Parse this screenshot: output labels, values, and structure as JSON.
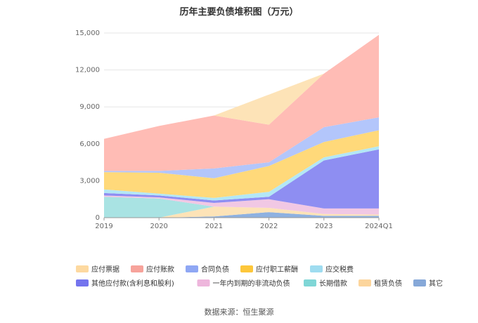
{
  "chart_data": {
    "type": "area",
    "stacked": true,
    "title": "历年主要负债堆积图（万元）",
    "source": "数据来源：恒生聚源",
    "categories": [
      "2019",
      "2020",
      "2021",
      "2022",
      "2023",
      "2024Q1"
    ],
    "ylim": [
      0,
      15000
    ],
    "yticks": [
      0,
      3000,
      6000,
      9000,
      12000,
      15000
    ],
    "ytick_labels": [
      "0",
      "3,000",
      "6,000",
      "9,000",
      "12,000",
      "15,000"
    ],
    "grid": true,
    "legend_position": "bottom",
    "series": [
      {
        "name": "其它",
        "color": "#8eb1e0",
        "values": [
          0,
          0,
          100,
          450,
          150,
          150
        ]
      },
      {
        "name": "租赁负债",
        "color": "#fde3b7",
        "values": [
          0,
          0,
          800,
          350,
          150,
          100
        ]
      },
      {
        "name": "长期借款",
        "color": "#a9e3e3",
        "values": [
          1700,
          1550,
          0,
          0,
          0,
          0
        ]
      },
      {
        "name": "一年内到期的非流动负债",
        "color": "#f1c8e4",
        "values": [
          100,
          100,
          300,
          700,
          450,
          500
        ]
      },
      {
        "name": "其他应付款(含利息和股利)",
        "color": "#8e8ef2",
        "values": [
          200,
          150,
          200,
          200,
          3900,
          4800
        ]
      },
      {
        "name": "应交税费",
        "color": "#b3e7f6",
        "values": [
          300,
          150,
          200,
          400,
          250,
          250
        ]
      },
      {
        "name": "应付职工薪酬",
        "color": "#ffd97a",
        "values": [
          1400,
          1700,
          1600,
          2100,
          1250,
          1300
        ]
      },
      {
        "name": "合同负债",
        "color": "#b3c6fb",
        "values": [
          100,
          150,
          800,
          300,
          1200,
          1050
        ]
      },
      {
        "name": "应付账款",
        "color": "#ffbcb5",
        "values": [
          2600,
          3650,
          4300,
          3050,
          4350,
          6700
        ]
      },
      {
        "name": "应付票据",
        "color": "#fde3b7",
        "values": [
          0,
          0,
          0,
          2450,
          0,
          0
        ]
      }
    ],
    "legend": [
      {
        "name": "应付票据",
        "color": "#fdd9a0"
      },
      {
        "name": "应付账款",
        "color": "#f7a39b"
      },
      {
        "name": "合同负债",
        "color": "#8fa7f4"
      },
      {
        "name": "应付职工薪酬",
        "color": "#fdc73b"
      },
      {
        "name": "应交税费",
        "color": "#9fdcf0"
      },
      {
        "name": "其他应付款(含利息和股利)",
        "color": "#7474ee"
      },
      {
        "name": "一年内到期的非流动负债",
        "color": "#eeb6dc"
      },
      {
        "name": "长期借款",
        "color": "#7fd6d6"
      },
      {
        "name": "租赁负债",
        "color": "#fcd59c"
      },
      {
        "name": "其它",
        "color": "#86a8d8"
      }
    ]
  }
}
